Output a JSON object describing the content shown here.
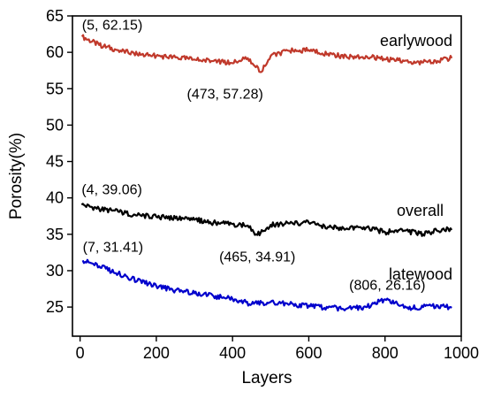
{
  "chart_data": {
    "type": "line",
    "xlabel": "Layers",
    "ylabel": "Porosity(%)",
    "xlim": [
      -20,
      1000
    ],
    "ylim": [
      21,
      65
    ],
    "x_ticks": [
      0,
      200,
      400,
      600,
      800,
      1000
    ],
    "y_ticks": [
      25,
      30,
      35,
      40,
      45,
      50,
      55,
      60,
      65
    ],
    "grid": false,
    "series": [
      {
        "name": "earlywood",
        "color": "#c0392b",
        "x": [
          5,
          50,
          100,
          150,
          200,
          250,
          300,
          350,
          400,
          440,
          473,
          500,
          550,
          600,
          650,
          700,
          750,
          800,
          850,
          900,
          950,
          975
        ],
        "y": [
          62.15,
          61.0,
          60.3,
          59.7,
          59.5,
          59.3,
          59.0,
          58.8,
          58.5,
          59.2,
          57.28,
          59.5,
          60.2,
          60.3,
          59.8,
          59.3,
          59.5,
          59.0,
          58.8,
          58.6,
          59.0,
          59.2
        ]
      },
      {
        "name": "overall",
        "color": "#000000",
        "x": [
          4,
          50,
          100,
          150,
          200,
          250,
          300,
          350,
          400,
          440,
          465,
          500,
          550,
          600,
          650,
          700,
          750,
          800,
          850,
          900,
          950,
          975
        ],
        "y": [
          39.06,
          38.5,
          38.1,
          37.6,
          37.4,
          37.2,
          37.0,
          36.6,
          36.4,
          36.2,
          34.91,
          36.3,
          36.5,
          36.6,
          36.0,
          35.8,
          35.9,
          35.3,
          35.5,
          35.0,
          35.7,
          35.6
        ]
      },
      {
        "name": "latewood",
        "color": "#0000cc",
        "x": [
          7,
          50,
          100,
          150,
          200,
          250,
          300,
          350,
          400,
          450,
          500,
          550,
          600,
          650,
          700,
          750,
          806,
          850,
          900,
          950,
          975
        ],
        "y": [
          31.41,
          30.6,
          29.6,
          28.6,
          27.9,
          27.3,
          26.9,
          26.5,
          26.1,
          25.4,
          25.7,
          25.4,
          25.2,
          24.9,
          24.8,
          25.0,
          26.16,
          24.9,
          25.0,
          25.2,
          24.9
        ]
      }
    ],
    "series_labels": [
      {
        "text": "earlywood",
        "series": 0
      },
      {
        "text": "overall",
        "series": 1
      },
      {
        "text": "latewood",
        "series": 2
      }
    ],
    "annotations": [
      {
        "text": "(5, 62.15)",
        "x": 5,
        "y": 62.15
      },
      {
        "text": "(473, 57.28)",
        "x": 473,
        "y": 57.28
      },
      {
        "text": "(4, 39.06)",
        "x": 4,
        "y": 39.06
      },
      {
        "text": "(465, 34.91)",
        "x": 465,
        "y": 34.91
      },
      {
        "text": "(7, 31.41)",
        "x": 7,
        "y": 31.41
      },
      {
        "text": "(806, 26.16)",
        "x": 806,
        "y": 26.16
      }
    ]
  }
}
